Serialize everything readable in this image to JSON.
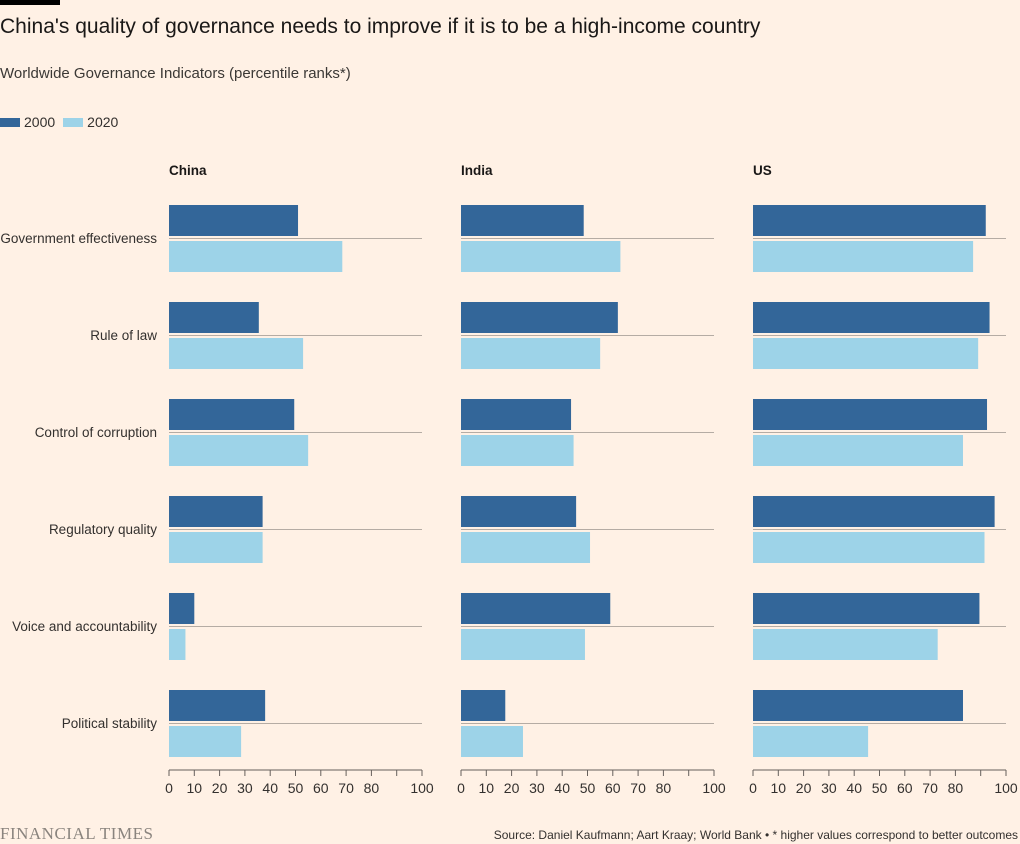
{
  "header": {
    "title": "China's quality of governance needs to improve if it is to be a high-income country",
    "subtitle": "Worldwide Governance Indicators (percentile ranks*)"
  },
  "footer": {
    "brand": "FINANCIAL TIMES",
    "source": "Source: Daniel Kaufmann; Aart Kraay; World Bank • * higher values correspond to better outcomes"
  },
  "colors": {
    "2000": "#336699",
    "2020": "#9dd3e8",
    "gridline": "#b5aca4"
  },
  "chart_data": {
    "type": "bar",
    "orientation": "horizontal",
    "categories": [
      "Government effectiveness",
      "Rule of law",
      "Control of corruption",
      "Regulatory quality",
      "Voice and accountability",
      "Political stability"
    ],
    "legend": [
      "2000",
      "2020"
    ],
    "xlim": [
      0,
      100
    ],
    "xticks": [
      0,
      10,
      20,
      30,
      40,
      50,
      60,
      70,
      80,
      100
    ],
    "panels": [
      {
        "name": "China",
        "series": [
          {
            "name": "2000",
            "values": [
              51,
              35.5,
              49.5,
              37,
              10,
              38
            ]
          },
          {
            "name": "2020",
            "values": [
              68.5,
              53,
              55,
              37,
              6.5,
              28.5
            ]
          }
        ]
      },
      {
        "name": "India",
        "series": [
          {
            "name": "2000",
            "values": [
              48.5,
              62,
              43.5,
              45.5,
              59,
              17.5
            ]
          },
          {
            "name": "2020",
            "values": [
              63,
              55,
              44.5,
              51,
              49,
              24.5
            ]
          }
        ]
      },
      {
        "name": "US",
        "series": [
          {
            "name": "2000",
            "values": [
              92,
              93.5,
              92.5,
              95.5,
              89.5,
              83
            ]
          },
          {
            "name": "2020",
            "values": [
              87,
              89,
              83,
              91.5,
              73,
              45.5
            ]
          }
        ]
      }
    ]
  }
}
